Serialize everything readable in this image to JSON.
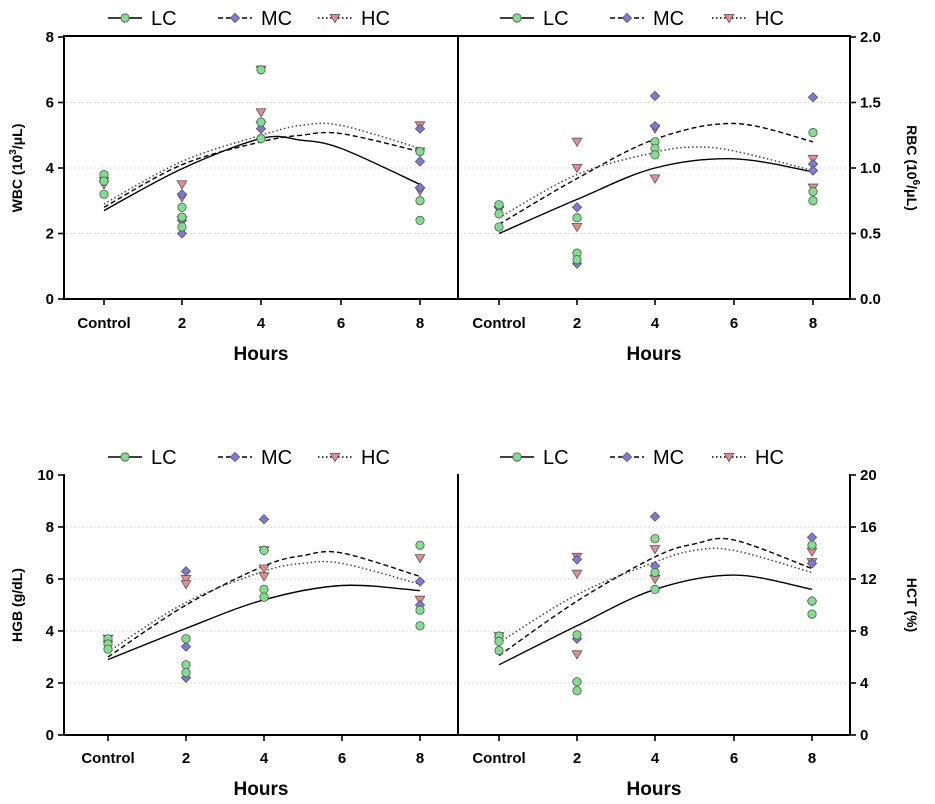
{
  "legend": {
    "series": [
      {
        "name": "LC",
        "color": "#7ee08a",
        "marker": "circle",
        "line": "solid"
      },
      {
        "name": "MC",
        "color": "#7b79e0",
        "marker": "diamond",
        "line": "dashed"
      },
      {
        "name": "HC",
        "color": "#f08a8a",
        "marker": "triangle-down",
        "line": "dotted"
      }
    ]
  },
  "chart_data": [
    {
      "type": "scatter",
      "panel": "top-left",
      "ylabel_main": "WBC (10",
      "ylabel_sup": "3",
      "ylabel_rest": "/μL)",
      "xlabel": "Hours",
      "ylim": [
        0,
        8
      ],
      "yticks": [
        "0",
        "2",
        "4",
        "6",
        "8"
      ],
      "xticks": [
        "Control",
        "2",
        "4",
        "6",
        "8"
      ],
      "x_positions": [
        0,
        2,
        4,
        6,
        8
      ],
      "series": [
        {
          "name": "LC",
          "points": [
            [
              0,
              3.8
            ],
            [
              0,
              3.6
            ],
            [
              0,
              3.2
            ],
            [
              2,
              2.2
            ],
            [
              2,
              2.5
            ],
            [
              2,
              2.8
            ],
            [
              4,
              7.0
            ],
            [
              4,
              5.4
            ],
            [
              4,
              4.9
            ],
            [
              8,
              4.5
            ],
            [
              8,
              3.0
            ],
            [
              8,
              2.4
            ]
          ],
          "fit": [
            [
              0,
              2.7
            ],
            [
              2,
              3.98
            ],
            [
              4,
              4.9
            ],
            [
              5,
              4.85
            ],
            [
              6,
              4.6
            ],
            [
              8,
              3.5
            ]
          ]
        },
        {
          "name": "MC",
          "points": [
            [
              0,
              3.7
            ],
            [
              2,
              2.0
            ],
            [
              2,
              2.4
            ],
            [
              2,
              3.2
            ],
            [
              4,
              5.2
            ],
            [
              4,
              4.9
            ],
            [
              8,
              5.2
            ],
            [
              8,
              4.2
            ],
            [
              8,
              3.4
            ]
          ],
          "fit": [
            [
              0,
              2.8
            ],
            [
              2,
              4.1
            ],
            [
              4,
              4.8
            ],
            [
              5,
              5.0
            ],
            [
              6,
              5.05
            ],
            [
              8,
              4.5
            ]
          ]
        },
        {
          "name": "HC",
          "points": [
            [
              0,
              3.5
            ],
            [
              2,
              3.5
            ],
            [
              2,
              3.1
            ],
            [
              2,
              2.4
            ],
            [
              4,
              5.7
            ],
            [
              4,
              7.0
            ],
            [
              4,
              5.3
            ],
            [
              8,
              5.3
            ],
            [
              8,
              4.5
            ],
            [
              8,
              3.3
            ]
          ],
          "fit": [
            [
              0,
              2.9
            ],
            [
              2,
              4.2
            ],
            [
              4,
              5.0
            ],
            [
              5,
              5.3
            ],
            [
              6,
              5.3
            ],
            [
              8,
              4.6
            ]
          ]
        }
      ]
    },
    {
      "type": "scatter",
      "panel": "top-right",
      "ylabel_main": "RBC (10",
      "ylabel_sup": "6",
      "ylabel_rest": "/μL)",
      "xlabel": "Hours",
      "ylim": [
        0,
        2
      ],
      "yticks": [
        "0.0",
        "0.5",
        "1.0",
        "1.5",
        "2.0"
      ],
      "xticks": [
        "Control",
        "2",
        "4",
        "6",
        "8"
      ],
      "x_positions": [
        0,
        2,
        4,
        6,
        8
      ],
      "series": [
        {
          "name": "LC",
          "points": [
            [
              0,
              0.72
            ],
            [
              0,
              0.65
            ],
            [
              0,
              0.55
            ],
            [
              2,
              0.62
            ],
            [
              2,
              0.35
            ],
            [
              2,
              0.3
            ],
            [
              4,
              1.2
            ],
            [
              4,
              1.15
            ],
            [
              4,
              1.1
            ],
            [
              8,
              1.27
            ],
            [
              8,
              0.82
            ],
            [
              8,
              0.75
            ]
          ],
          "fit": [
            [
              0,
              0.5
            ],
            [
              2,
              0.76
            ],
            [
              4,
              1.0
            ],
            [
              6,
              1.07
            ],
            [
              8,
              0.97
            ]
          ]
        },
        {
          "name": "MC",
          "points": [
            [
              0,
              0.7
            ],
            [
              2,
              0.7
            ],
            [
              2,
              0.27
            ],
            [
              4,
              1.55
            ],
            [
              4,
              1.32
            ],
            [
              8,
              1.54
            ],
            [
              8,
              1.03
            ],
            [
              8,
              0.98
            ]
          ],
          "fit": [
            [
              0,
              0.57
            ],
            [
              2,
              0.92
            ],
            [
              4,
              1.22
            ],
            [
              6,
              1.34
            ],
            [
              8,
              1.2
            ]
          ]
        },
        {
          "name": "HC",
          "points": [
            [
              0,
              0.68
            ],
            [
              2,
              1.2
            ],
            [
              2,
              1.0
            ],
            [
              2,
              0.55
            ],
            [
              4,
              1.3
            ],
            [
              4,
              0.92
            ],
            [
              8,
              1.07
            ],
            [
              8,
              0.85
            ]
          ],
          "fit": [
            [
              0,
              0.62
            ],
            [
              2,
              0.95
            ],
            [
              4,
              1.12
            ],
            [
              5,
              1.16
            ],
            [
              6,
              1.13
            ],
            [
              8,
              0.98
            ]
          ]
        }
      ]
    },
    {
      "type": "scatter",
      "panel": "bottom-left",
      "ylabel_main": "HGB (g/dL)",
      "ylabel_sup": "",
      "ylabel_rest": "",
      "xlabel": "Hours",
      "ylim": [
        0,
        10
      ],
      "yticks": [
        "0",
        "2",
        "4",
        "6",
        "8",
        "10"
      ],
      "xticks": [
        "Control",
        "2",
        "4",
        "6",
        "8"
      ],
      "x_positions": [
        0,
        2,
        4,
        6,
        8
      ],
      "series": [
        {
          "name": "LC",
          "points": [
            [
              0,
              3.7
            ],
            [
              0,
              3.5
            ],
            [
              0,
              3.3
            ],
            [
              2,
              3.7
            ],
            [
              2,
              2.7
            ],
            [
              2,
              2.4
            ],
            [
              4,
              7.1
            ],
            [
              4,
              5.6
            ],
            [
              4,
              5.3
            ],
            [
              8,
              7.3
            ],
            [
              8,
              4.8
            ],
            [
              8,
              4.2
            ]
          ],
          "fit": [
            [
              0,
              2.9
            ],
            [
              2,
              4.1
            ],
            [
              4,
              5.2
            ],
            [
              6,
              5.75
            ],
            [
              8,
              5.55
            ]
          ]
        },
        {
          "name": "MC",
          "points": [
            [
              0,
              3.6
            ],
            [
              2,
              6.3
            ],
            [
              2,
              3.4
            ],
            [
              2,
              2.2
            ],
            [
              4,
              8.3
            ],
            [
              4,
              7.1
            ],
            [
              8,
              5.9
            ],
            [
              8,
              5.0
            ]
          ],
          "fit": [
            [
              0,
              3.0
            ],
            [
              2,
              5.0
            ],
            [
              4,
              6.5
            ],
            [
              5,
              6.9
            ],
            [
              6,
              7.0
            ],
            [
              8,
              6.1
            ]
          ]
        },
        {
          "name": "HC",
          "points": [
            [
              0,
              3.7
            ],
            [
              2,
              6.0
            ],
            [
              2,
              5.8
            ],
            [
              4,
              7.1
            ],
            [
              4,
              6.4
            ],
            [
              4,
              6.1
            ],
            [
              8,
              6.8
            ],
            [
              8,
              5.2
            ]
          ],
          "fit": [
            [
              0,
              3.2
            ],
            [
              2,
              5.1
            ],
            [
              4,
              6.3
            ],
            [
              5,
              6.6
            ],
            [
              6,
              6.6
            ],
            [
              8,
              5.8
            ]
          ]
        }
      ]
    },
    {
      "type": "scatter",
      "panel": "bottom-right",
      "ylabel_main": "HCT (%)",
      "ylabel_sup": "",
      "ylabel_rest": "",
      "xlabel": "Hours",
      "ylim": [
        0,
        20
      ],
      "yticks": [
        "0",
        "4",
        "8",
        "12",
        "16",
        "20"
      ],
      "xticks": [
        "Control",
        "2",
        "4",
        "6",
        "8"
      ],
      "x_positions": [
        0,
        2,
        4,
        6,
        8
      ],
      "series": [
        {
          "name": "LC",
          "points": [
            [
              0,
              7.6
            ],
            [
              0,
              7.2
            ],
            [
              0,
              6.5
            ],
            [
              2,
              7.7
            ],
            [
              2,
              4.1
            ],
            [
              2,
              3.4
            ],
            [
              4,
              15.1
            ],
            [
              4,
              12.5
            ],
            [
              4,
              11.2
            ],
            [
              8,
              14.6
            ],
            [
              8,
              10.3
            ],
            [
              8,
              9.3
            ]
          ],
          "fit": [
            [
              0,
              5.4
            ],
            [
              2,
              8.4
            ],
            [
              4,
              11.2
            ],
            [
              6,
              12.3
            ],
            [
              8,
              11.2
            ]
          ]
        },
        {
          "name": "MC",
          "points": [
            [
              0,
              7.6
            ],
            [
              2,
              13.5
            ],
            [
              2,
              7.4
            ],
            [
              4,
              16.8
            ],
            [
              4,
              13.0
            ],
            [
              8,
              15.2
            ],
            [
              8,
              13.2
            ],
            [
              8,
              10.3
            ]
          ],
          "fit": [
            [
              0,
              6.1
            ],
            [
              2,
              10.3
            ],
            [
              4,
              13.7
            ],
            [
              5,
              14.7
            ],
            [
              6,
              15.0
            ],
            [
              8,
              12.8
            ]
          ]
        },
        {
          "name": "HC",
          "points": [
            [
              0,
              7.6
            ],
            [
              2,
              13.7
            ],
            [
              2,
              12.4
            ],
            [
              2,
              6.2
            ],
            [
              4,
              14.3
            ],
            [
              4,
              12.0
            ],
            [
              8,
              14.1
            ],
            [
              8,
              13.3
            ]
          ],
          "fit": [
            [
              0,
              7.1
            ],
            [
              2,
              10.8
            ],
            [
              4,
              13.3
            ],
            [
              5,
              14.2
            ],
            [
              6,
              14.2
            ],
            [
              8,
              12.5
            ]
          ]
        }
      ]
    }
  ]
}
